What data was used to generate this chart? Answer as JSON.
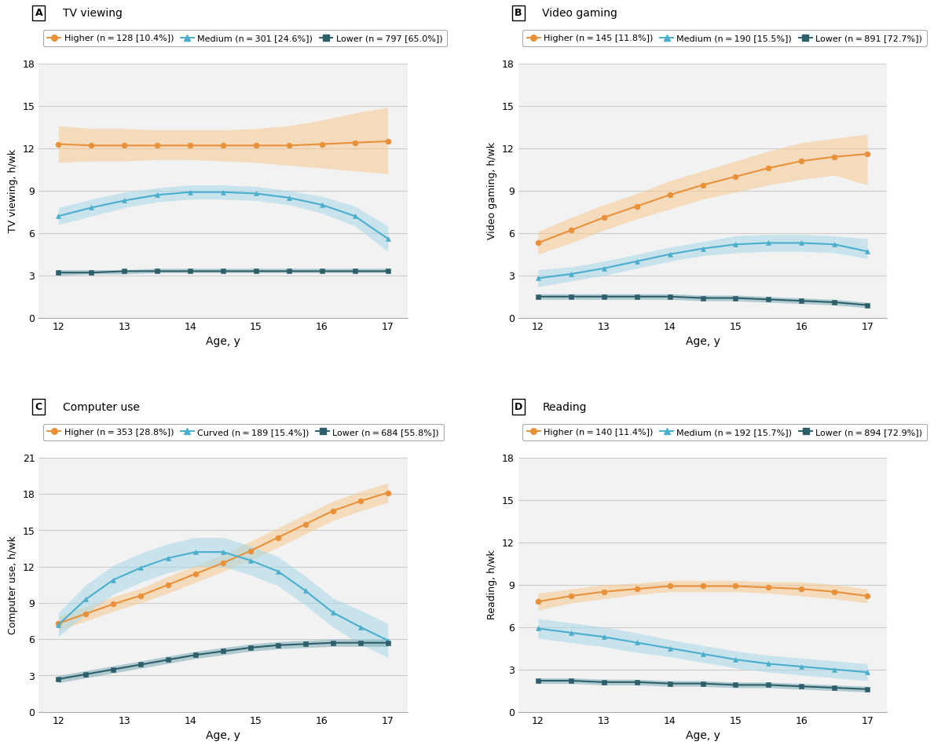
{
  "panels": [
    {
      "label": "A",
      "title": "TV viewing",
      "ylabel": "TV viewing, h/wk",
      "ylim": [
        0,
        18
      ],
      "yticks": [
        0,
        3,
        6,
        9,
        12,
        15,
        18
      ],
      "legend_labels": [
        "Higher (n = 128 [10.4%])",
        "Medium (n = 301 [24.6%])",
        "Lower (n = 797 [65.0%])"
      ],
      "series": [
        {
          "y": [
            12.3,
            12.2,
            12.2,
            12.2,
            12.2,
            12.2,
            12.2,
            12.2,
            12.3,
            12.4,
            12.5
          ],
          "y_lo": [
            11.0,
            11.1,
            11.1,
            11.2,
            11.2,
            11.1,
            11.0,
            10.8,
            10.6,
            10.4,
            10.2
          ],
          "y_hi": [
            13.6,
            13.4,
            13.4,
            13.3,
            13.3,
            13.3,
            13.4,
            13.6,
            14.0,
            14.5,
            14.9
          ],
          "color": "#E8913A",
          "fill_color": "#F5C990",
          "marker": "o"
        },
        {
          "y": [
            7.2,
            7.8,
            8.3,
            8.7,
            8.9,
            8.9,
            8.8,
            8.5,
            8.0,
            7.2,
            5.6
          ],
          "y_lo": [
            6.6,
            7.2,
            7.8,
            8.2,
            8.4,
            8.4,
            8.3,
            8.0,
            7.4,
            6.5,
            4.7
          ],
          "y_hi": [
            7.8,
            8.4,
            8.9,
            9.2,
            9.4,
            9.4,
            9.3,
            9.0,
            8.6,
            7.9,
            6.5
          ],
          "color": "#4AAECC",
          "fill_color": "#A8D8E8",
          "marker": "^"
        },
        {
          "y": [
            3.2,
            3.2,
            3.3,
            3.3,
            3.3,
            3.3,
            3.3,
            3.3,
            3.3,
            3.3,
            3.3
          ],
          "y_lo": [
            3.0,
            3.1,
            3.1,
            3.2,
            3.2,
            3.2,
            3.2,
            3.2,
            3.2,
            3.2,
            3.2
          ],
          "y_hi": [
            3.4,
            3.4,
            3.4,
            3.5,
            3.5,
            3.5,
            3.5,
            3.5,
            3.5,
            3.5,
            3.5
          ],
          "color": "#2D5F6B",
          "fill_color": "#7AAAB5",
          "marker": "s"
        }
      ]
    },
    {
      "label": "B",
      "title": "Video gaming",
      "ylabel": "Video gaming, h/wk",
      "ylim": [
        0,
        18
      ],
      "yticks": [
        0,
        3,
        6,
        9,
        12,
        15,
        18
      ],
      "legend_labels": [
        "Higher (n = 145 [11.8%])",
        "Medium (n = 190 [15.5%])",
        "Lower (n = 891 [72.7%])"
      ],
      "series": [
        {
          "y": [
            5.3,
            6.2,
            7.1,
            7.9,
            8.7,
            9.4,
            10.0,
            10.6,
            11.1,
            11.4,
            11.6
          ],
          "y_lo": [
            4.5,
            5.3,
            6.2,
            7.0,
            7.7,
            8.4,
            8.9,
            9.4,
            9.8,
            10.1,
            9.4
          ],
          "y_hi": [
            6.1,
            7.1,
            8.0,
            8.8,
            9.7,
            10.4,
            11.1,
            11.8,
            12.4,
            12.7,
            13.0
          ],
          "color": "#E8913A",
          "fill_color": "#F5C990",
          "marker": "o"
        },
        {
          "y": [
            2.8,
            3.1,
            3.5,
            4.0,
            4.5,
            4.9,
            5.2,
            5.3,
            5.3,
            5.2,
            4.7
          ],
          "y_lo": [
            2.2,
            2.6,
            3.0,
            3.5,
            4.0,
            4.4,
            4.6,
            4.7,
            4.7,
            4.6,
            4.2
          ],
          "y_hi": [
            3.4,
            3.6,
            4.0,
            4.5,
            5.0,
            5.4,
            5.8,
            5.9,
            5.9,
            5.8,
            5.6
          ],
          "color": "#4AAECC",
          "fill_color": "#A8D8E8",
          "marker": "^"
        },
        {
          "y": [
            1.5,
            1.5,
            1.5,
            1.5,
            1.5,
            1.4,
            1.4,
            1.3,
            1.2,
            1.1,
            0.9
          ],
          "y_lo": [
            1.3,
            1.3,
            1.3,
            1.3,
            1.3,
            1.2,
            1.2,
            1.1,
            1.0,
            0.9,
            0.7
          ],
          "y_hi": [
            1.7,
            1.7,
            1.7,
            1.7,
            1.7,
            1.6,
            1.6,
            1.5,
            1.4,
            1.3,
            1.1
          ],
          "color": "#2D5F6B",
          "fill_color": "#7AAAB5",
          "marker": "s"
        }
      ]
    },
    {
      "label": "C",
      "title": "Computer use",
      "ylabel": "Computer use, h/wk",
      "ylim": [
        0,
        21
      ],
      "yticks": [
        0,
        3,
        6,
        9,
        12,
        15,
        18,
        21
      ],
      "legend_labels": [
        "Higher (n = 353 [28.8%])",
        "Curved (n = 189 [15.4%])",
        "Lower (n = 684 [55.8%])"
      ],
      "series": [
        {
          "y": [
            7.3,
            8.1,
            8.9,
            9.6,
            10.5,
            11.4,
            12.3,
            13.3,
            14.4,
            15.5,
            16.6,
            17.4,
            18.1
          ],
          "y_lo": [
            6.7,
            7.5,
            8.3,
            9.0,
            9.8,
            10.7,
            11.6,
            12.5,
            13.6,
            14.7,
            15.8,
            16.6,
            17.3
          ],
          "y_hi": [
            7.9,
            8.7,
            9.5,
            10.2,
            11.2,
            12.1,
            13.0,
            14.1,
            15.2,
            16.3,
            17.4,
            18.2,
            18.9
          ],
          "color": "#E8913A",
          "fill_color": "#F5C990",
          "marker": "o"
        },
        {
          "y": [
            7.2,
            9.3,
            10.9,
            11.9,
            12.7,
            13.2,
            13.2,
            12.5,
            11.6,
            10.0,
            8.2,
            7.0,
            5.9
          ],
          "y_lo": [
            6.2,
            8.1,
            9.7,
            10.7,
            11.5,
            12.0,
            12.0,
            11.3,
            10.4,
            8.8,
            7.0,
            5.6,
            4.5
          ],
          "y_hi": [
            8.2,
            10.5,
            12.1,
            13.1,
            13.9,
            14.4,
            14.4,
            13.7,
            12.8,
            11.2,
            9.4,
            8.4,
            7.3
          ],
          "color": "#4AAECC",
          "fill_color": "#A8D8E8",
          "marker": "^"
        },
        {
          "y": [
            2.7,
            3.1,
            3.5,
            3.9,
            4.3,
            4.7,
            5.0,
            5.3,
            5.5,
            5.6,
            5.7,
            5.7,
            5.7
          ],
          "y_lo": [
            2.4,
            2.8,
            3.2,
            3.6,
            4.0,
            4.4,
            4.7,
            5.0,
            5.2,
            5.3,
            5.4,
            5.4,
            5.4
          ],
          "y_hi": [
            3.0,
            3.4,
            3.8,
            4.2,
            4.6,
            5.0,
            5.3,
            5.6,
            5.8,
            5.9,
            6.0,
            6.0,
            6.0
          ],
          "color": "#2D5F6B",
          "fill_color": "#7AAAB5",
          "marker": "s"
        }
      ]
    },
    {
      "label": "D",
      "title": "Reading",
      "ylabel": "Reading, h/wk",
      "ylim": [
        0,
        18
      ],
      "yticks": [
        0,
        3,
        6,
        9,
        12,
        15,
        18
      ],
      "legend_labels": [
        "Higher (n = 140 [11.4%])",
        "Medium (n = 192 [15.7%])",
        "Lower (n = 894 [72.9%])"
      ],
      "series": [
        {
          "y": [
            7.8,
            8.2,
            8.5,
            8.7,
            8.9,
            8.9,
            8.9,
            8.8,
            8.7,
            8.5,
            8.2
          ],
          "y_lo": [
            7.2,
            7.7,
            8.0,
            8.3,
            8.5,
            8.5,
            8.5,
            8.4,
            8.2,
            8.0,
            7.7
          ],
          "y_hi": [
            8.4,
            8.7,
            9.0,
            9.1,
            9.3,
            9.3,
            9.3,
            9.2,
            9.2,
            9.0,
            8.7
          ],
          "color": "#E8913A",
          "fill_color": "#F5C990",
          "marker": "o"
        },
        {
          "y": [
            5.9,
            5.6,
            5.3,
            4.9,
            4.5,
            4.1,
            3.7,
            3.4,
            3.2,
            3.0,
            2.8
          ],
          "y_lo": [
            5.2,
            4.9,
            4.6,
            4.2,
            3.9,
            3.5,
            3.1,
            2.8,
            2.6,
            2.4,
            2.2
          ],
          "y_hi": [
            6.6,
            6.3,
            6.0,
            5.6,
            5.1,
            4.7,
            4.3,
            4.0,
            3.8,
            3.6,
            3.4
          ],
          "color": "#4AAECC",
          "fill_color": "#A8D8E8",
          "marker": "^"
        },
        {
          "y": [
            2.2,
            2.2,
            2.1,
            2.1,
            2.0,
            2.0,
            1.9,
            1.9,
            1.8,
            1.7,
            1.6
          ],
          "y_lo": [
            2.0,
            2.0,
            1.9,
            1.9,
            1.8,
            1.8,
            1.7,
            1.7,
            1.6,
            1.5,
            1.4
          ],
          "y_hi": [
            2.4,
            2.4,
            2.3,
            2.3,
            2.2,
            2.2,
            2.1,
            2.1,
            2.0,
            1.9,
            1.8
          ],
          "color": "#2D5F6B",
          "fill_color": "#7AAAB5",
          "marker": "s"
        }
      ]
    }
  ],
  "x_label": "Age, y",
  "xticks": [
    12,
    13,
    14,
    15,
    16,
    17
  ],
  "xlim": [
    11.7,
    17.3
  ],
  "bg_color": "#FFFFFF",
  "panel_bg": "#F2F2F2",
  "grid_color": "#CCCCCC",
  "marker_size": 5,
  "line_width": 1.5
}
